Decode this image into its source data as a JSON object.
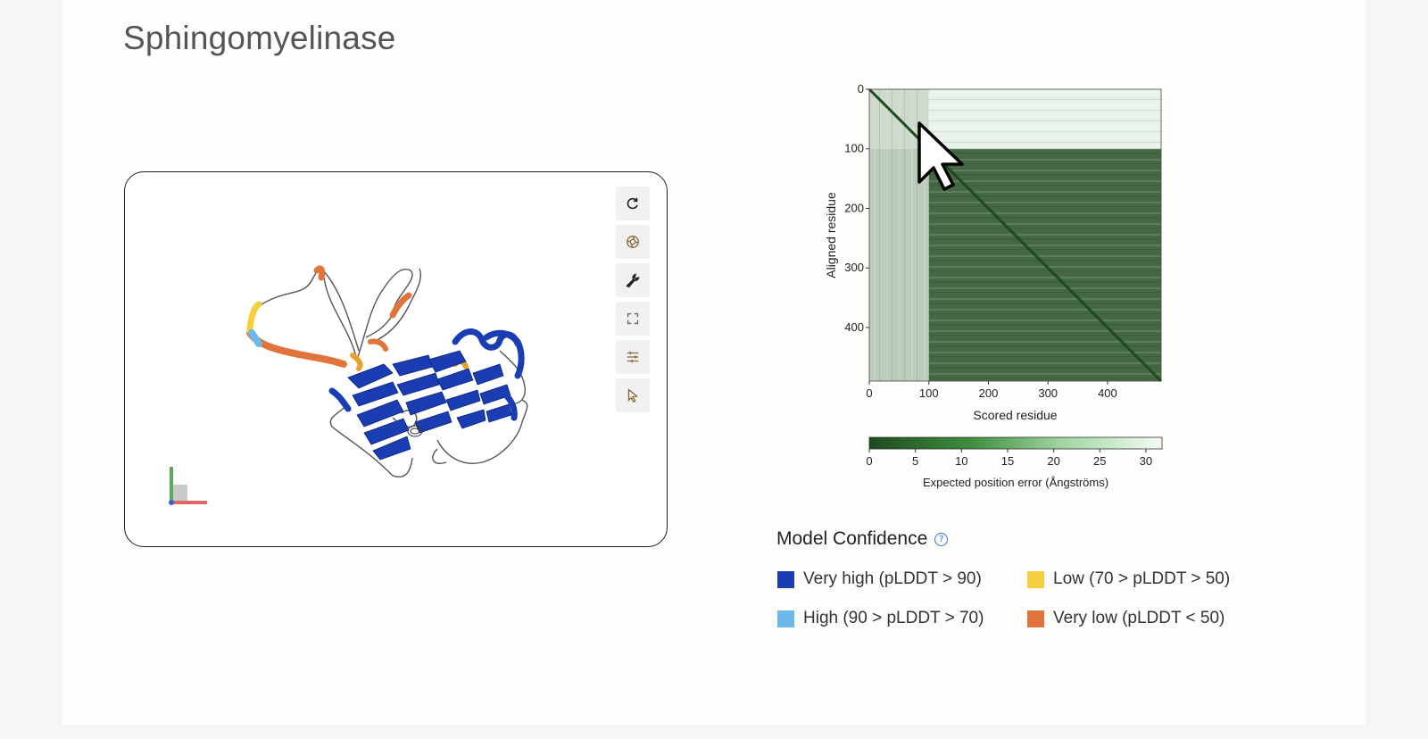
{
  "title": "Sphingomyelinase",
  "toolbar": {
    "icons": [
      "reset-icon",
      "snapshot-icon",
      "wrench-icon",
      "fullscreen-icon",
      "sliders-icon",
      "select-cursor-icon"
    ]
  },
  "model_confidence": {
    "title": "Model Confidence",
    "help_glyph": "?",
    "items": [
      {
        "label": "Very high (pLDDT > 90)",
        "color": "#1a3db3"
      },
      {
        "label": "Low (70 > pLDDT > 50)",
        "color": "#f4d03f"
      },
      {
        "label": "High (90 > pLDDT > 70)",
        "color": "#6cb8e8"
      },
      {
        "label": "Very low (pLDDT < 50)",
        "color": "#e0743a"
      }
    ]
  },
  "chart_data": {
    "type": "heatmap",
    "title": "",
    "xlabel": "Scored residue",
    "ylabel": "Aligned residue",
    "xticks": [
      "0",
      "100",
      "200",
      "300",
      "400"
    ],
    "yticks": [
      "0",
      "100",
      "200",
      "300",
      "400"
    ],
    "xlim": [
      0,
      490
    ],
    "ylim": [
      0,
      490
    ],
    "colorbar": {
      "label": "Expected position error (Ångströms)",
      "ticks": [
        "0",
        "5",
        "10",
        "15",
        "20",
        "25",
        "30"
      ],
      "range": [
        0,
        31.75
      ],
      "color_low": "#1e4a1e",
      "color_high": "#f4fbf4"
    },
    "regions": [
      {
        "x": [
          0,
          100
        ],
        "y": [
          0,
          100
        ],
        "approx_error": 25
      },
      {
        "x": [
          100,
          490
        ],
        "y": [
          0,
          100
        ],
        "approx_error": 30
      },
      {
        "x": [
          0,
          100
        ],
        "y": [
          100,
          490
        ],
        "approx_error": 22
      },
      {
        "x": [
          100,
          490
        ],
        "y": [
          100,
          490
        ],
        "approx_error": 4
      }
    ]
  }
}
